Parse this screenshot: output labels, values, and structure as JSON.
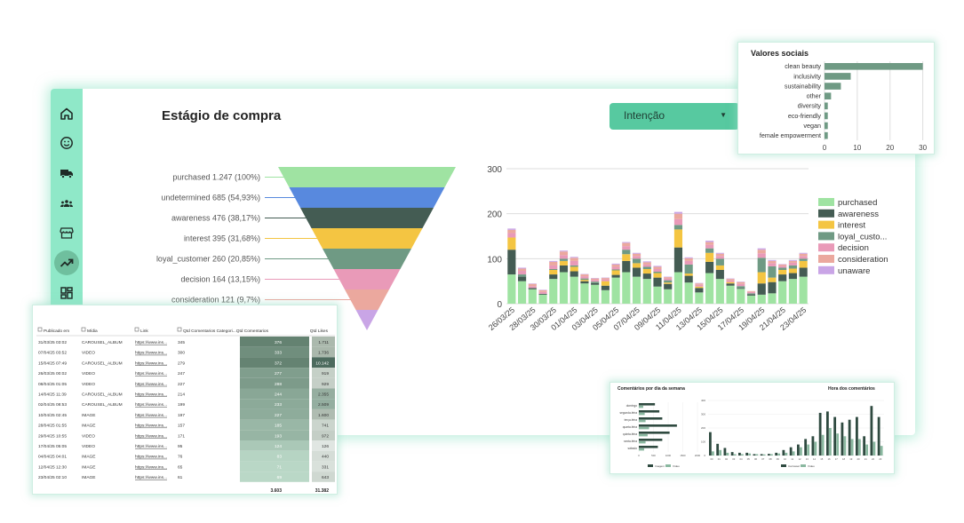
{
  "sidebar": {
    "items": [
      {
        "id": "home",
        "icon": "home-icon"
      },
      {
        "id": "sentiment",
        "icon": "smiley-icon"
      },
      {
        "id": "delivery",
        "icon": "truck-icon"
      },
      {
        "id": "audience",
        "icon": "people-icon"
      },
      {
        "id": "store",
        "icon": "store-icon"
      },
      {
        "id": "purchase-stage",
        "icon": "trending-up-icon",
        "active": true
      },
      {
        "id": "dashboard",
        "icon": "dashboard-icon"
      }
    ]
  },
  "main": {
    "title": "Estágio de compra",
    "dropdown": {
      "label": "Intenção",
      "caret": "▼"
    }
  },
  "funnel_chart": {
    "type": "funnel",
    "stages": [
      {
        "label": "purchased 1.247 (100%)",
        "name": "purchased",
        "value": 1247,
        "pct": 100,
        "color": "#9fe3a2"
      },
      {
        "label": "undetermined 685 (54,93%)",
        "name": "undetermined",
        "value": 685,
        "pct": 54.93,
        "color": "#5889de"
      },
      {
        "label": "awareness 476 (38,17%)",
        "name": "awareness",
        "value": 476,
        "pct": 38.17,
        "color": "#445c53"
      },
      {
        "label": "interest 395 (31,68%)",
        "name": "interest",
        "value": 395,
        "pct": 31.68,
        "color": "#f4c542"
      },
      {
        "label": "loyal_customer 260 (20,85%)",
        "name": "loyal_customer",
        "value": 260,
        "pct": 20.85,
        "color": "#6f9a84"
      },
      {
        "label": "decision 164 (13,15%)",
        "name": "decision",
        "value": 164,
        "pct": 13.15,
        "color": "#e99ab8"
      },
      {
        "label": "consideration 121 (9,7%)",
        "name": "consideration",
        "value": 121,
        "pct": 9.7,
        "color": "#eba89e"
      },
      {
        "label": "",
        "name": "unaware",
        "value": null,
        "pct": null,
        "color": "#c9a5e6"
      }
    ]
  },
  "chart_data": [
    {
      "type": "bar",
      "stacked": true,
      "ylim": [
        0,
        300
      ],
      "yticks": [
        "0",
        "100",
        "200",
        "300"
      ],
      "grid": true,
      "legend_position": "right",
      "x_tick_labels": [
        "26/03/25",
        "28/03/25",
        "30/03/25",
        "01/04/25",
        "03/04/25",
        "05/04/25",
        "07/04/25",
        "09/04/25",
        "11/04/25",
        "13/04/25",
        "15/04/25",
        "17/04/25",
        "19/04/25",
        "21/04/25",
        "23/04/25"
      ],
      "series_order": [
        "purchased",
        "awareness",
        "interest",
        "loyal_customer",
        "decision",
        "consideration",
        "unaware"
      ],
      "legend": [
        {
          "label": "purchased",
          "color": "#9fe3a2"
        },
        {
          "label": "awareness",
          "color": "#445c53"
        },
        {
          "label": "interest",
          "color": "#f4c542"
        },
        {
          "label": "loyal_custo...",
          "color": "#6f9a84"
        },
        {
          "label": "decision",
          "color": "#e99ab8"
        },
        {
          "label": "consideration",
          "color": "#eba89e"
        },
        {
          "label": "unaware",
          "color": "#c9a5e6"
        }
      ],
      "bars": [
        [
          65,
          55,
          27,
          0,
          10,
          7,
          3
        ],
        [
          50,
          10,
          0,
          5,
          8,
          5,
          2
        ],
        [
          32,
          3,
          0,
          0,
          4,
          5,
          1
        ],
        [
          20,
          2,
          0,
          0,
          4,
          4,
          1
        ],
        [
          55,
          10,
          10,
          2,
          8,
          8,
          2
        ],
        [
          70,
          15,
          10,
          5,
          8,
          8,
          2
        ],
        [
          60,
          12,
          10,
          3,
          10,
          7,
          2
        ],
        [
          45,
          5,
          3,
          3,
          5,
          4,
          1
        ],
        [
          42,
          4,
          0,
          3,
          4,
          3,
          1
        ],
        [
          30,
          10,
          10,
          0,
          4,
          3,
          1
        ],
        [
          58,
          6,
          10,
          2,
          6,
          5,
          2
        ],
        [
          70,
          25,
          15,
          10,
          8,
          7,
          2
        ],
        [
          60,
          20,
          10,
          10,
          6,
          5,
          2
        ],
        [
          55,
          12,
          10,
          5,
          5,
          5,
          2
        ],
        [
          38,
          20,
          10,
          3,
          6,
          5,
          2
        ],
        [
          32,
          12,
          3,
          5,
          4,
          3,
          1
        ],
        [
          70,
          55,
          40,
          10,
          13,
          12,
          4
        ],
        [
          47,
          15,
          5,
          20,
          8,
          6,
          2
        ],
        [
          25,
          10,
          3,
          0,
          4,
          3,
          1
        ],
        [
          68,
          25,
          20,
          10,
          8,
          6,
          3
        ],
        [
          55,
          20,
          10,
          15,
          6,
          5,
          2
        ],
        [
          40,
          5,
          3,
          0,
          4,
          3,
          1
        ],
        [
          33,
          2,
          0,
          4,
          5,
          4,
          1
        ],
        [
          18,
          3,
          0,
          2,
          3,
          2,
          0
        ],
        [
          20,
          25,
          25,
          32,
          10,
          8,
          3
        ],
        [
          23,
          25,
          10,
          25,
          7,
          5,
          2
        ],
        [
          50,
          15,
          10,
          5,
          4,
          3,
          1
        ],
        [
          55,
          13,
          10,
          7,
          6,
          4,
          2
        ],
        [
          60,
          20,
          15,
          5,
          6,
          5,
          2
        ]
      ]
    },
    {
      "type": "bar",
      "orientation": "horizontal",
      "title": "Valores sociais",
      "categories": [
        "clean beauty",
        "inclusivity",
        "sustainability",
        "other",
        "diversity",
        "eco-friendly",
        "vegan",
        "female empowerment"
      ],
      "values": [
        30,
        8,
        5,
        2,
        1,
        1,
        1,
        1
      ],
      "xlim": [
        0,
        32
      ],
      "xticks": [
        "0",
        "10",
        "20",
        "30"
      ],
      "color": "#6f9a84"
    },
    {
      "type": "bar",
      "orientation": "horizontal",
      "title": "Comentários por dia da semana",
      "categories": [
        "domingo",
        "segunda-feira",
        "terça-feira",
        "quarta-feira",
        "quinta-feira",
        "sexta-feira",
        "sábado"
      ],
      "series": [
        {
          "name": "Imagem",
          "values": [
            550,
            700,
            800,
            1300,
            1050,
            800,
            650
          ]
        },
        {
          "name": "Vídeo",
          "values": [
            150,
            200,
            230,
            350,
            300,
            230,
            180
          ]
        }
      ],
      "xticks": [
        "0",
        "500",
        "1000",
        "1500",
        "2000"
      ],
      "xlim": [
        0,
        2000
      ],
      "colors": [
        "#2f4a40",
        "#8ab8a0"
      ]
    },
    {
      "type": "bar",
      "title": "Hora dos comentários",
      "categories": [
        "00",
        "01",
        "02",
        "03",
        "04",
        "05",
        "06",
        "07",
        "08",
        "09",
        "10",
        "11",
        "12",
        "13",
        "14",
        "15",
        "16",
        "17",
        "18",
        "19",
        "20",
        "21",
        "22",
        "23"
      ],
      "series": [
        {
          "name": "Carrossel",
          "values": [
            170,
            85,
            55,
            25,
            20,
            20,
            10,
            10,
            12,
            20,
            40,
            60,
            80,
            120,
            140,
            310,
            320,
            280,
            240,
            260,
            280,
            140,
            360,
            280
          ]
        },
        {
          "name": "Vídeo",
          "values": [
            30,
            40,
            20,
            10,
            10,
            15,
            10,
            8,
            10,
            15,
            20,
            30,
            60,
            80,
            100,
            150,
            200,
            160,
            140,
            120,
            120,
            80,
            100,
            70
          ]
        }
      ],
      "yticks": [
        "0",
        "100",
        "200",
        "300",
        "400"
      ],
      "ylim": [
        0,
        400
      ],
      "colors": [
        "#2f4a40",
        "#8ab8a0"
      ]
    }
  ],
  "table": {
    "columns": [
      "Publicado em",
      "Mídia",
      "Link",
      "Qtd Comentarios Categori...",
      "Qtd Comentarios",
      "Qtd Likes"
    ],
    "rows": [
      [
        "31/03/25 03:02",
        "CAROUSEL_ALBUM",
        "https://www.ins...",
        "345",
        "376",
        "1.711"
      ],
      [
        "07/04/25 03:52",
        "VIDEO",
        "https://www.ins...",
        "300",
        "333",
        "1.736"
      ],
      [
        "15/04/25 07:49",
        "CAROUSEL_ALBUM",
        "https://www.ins...",
        "279",
        "372",
        "10.142"
      ],
      [
        "26/03/25 00:02",
        "VIDEO",
        "https://www.ins...",
        "247",
        "277",
        "919"
      ],
      [
        "08/04/25 01:05",
        "VIDEO",
        "https://www.ins...",
        "227",
        "288",
        "929"
      ],
      [
        "14/04/25 11:39",
        "CAROUSEL_ALBUM",
        "https://www.ins...",
        "214",
        "244",
        "2.355"
      ],
      [
        "02/04/25 08:53",
        "CAROUSEL_ALBUM",
        "https://www.ins...",
        "199",
        "233",
        "2.509"
      ],
      [
        "10/04/25 02:45",
        "IMAGE",
        "https://www.ins...",
        "197",
        "227",
        "1.600"
      ],
      [
        "28/04/25 01:55",
        "IMAGE",
        "https://www.ins...",
        "157",
        "185",
        "741"
      ],
      [
        "29/04/25 10:55",
        "VIDEO",
        "https://www.ins...",
        "171",
        "193",
        "972"
      ],
      [
        "17/04/25 05:05",
        "VIDEO",
        "https://www.ins...",
        "95",
        "124",
        "126"
      ],
      [
        "04/04/25 04:01",
        "IMAGE",
        "https://www.ins...",
        "76",
        "83",
        "440"
      ],
      [
        "12/04/25 12:30",
        "IMAGE",
        "https://www.ins...",
        "65",
        "71",
        "331"
      ],
      [
        "23/04/25 02:10",
        "IMAGE",
        "https://www.ins...",
        "61",
        "69",
        "643"
      ]
    ],
    "totals": {
      "comments": "3.603",
      "likes": "31.382"
    }
  },
  "mini_charts": {
    "weekday_legend": [
      "Imagem",
      "Vídeo"
    ],
    "hour_legend": [
      "Carrossel",
      "Vídeo"
    ]
  },
  "colors": {
    "accent": "#8fe8c8",
    "accent_dark": "#57c9a0",
    "heat_dark": "#4d6b5e",
    "heat_light": "#dbe8e2"
  }
}
